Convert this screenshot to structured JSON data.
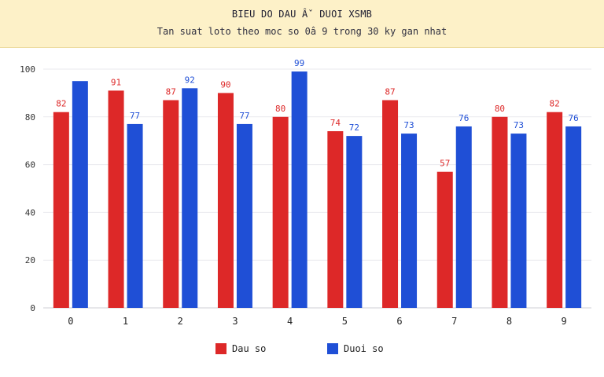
{
  "header": {
    "title": "BIEU DO DAU Âˇ DUOI XSMB",
    "subtitle": "Tan suat loto theo moc so 0â  9 trong 30 ky gan nhat",
    "background": "#fdf1c8"
  },
  "legend": [
    {
      "label": "Dau so",
      "color": "#dd2828"
    },
    {
      "label": "Duoi so",
      "color": "#1f4fd6"
    }
  ],
  "chart_data": {
    "type": "bar",
    "categories": [
      "0",
      "1",
      "2",
      "3",
      "4",
      "5",
      "6",
      "7",
      "8",
      "9"
    ],
    "series": [
      {
        "name": "Dau so",
        "color": "#dd2828",
        "values": [
          82,
          91,
          87,
          90,
          80,
          74,
          87,
          57,
          80,
          82
        ],
        "labels": [
          "82",
          "91",
          "87",
          "90",
          "80",
          "74",
          "87",
          "57",
          "80",
          "82"
        ]
      },
      {
        "name": "Duoi so",
        "color": "#1f4fd6",
        "values": [
          95,
          77,
          92,
          77,
          99,
          72,
          73,
          76,
          73,
          76
        ],
        "labels": [
          "",
          "77",
          "92",
          "77",
          "99",
          "72",
          "73",
          "76",
          "73",
          "76"
        ]
      }
    ],
    "ylim": [
      0,
      100
    ],
    "yticks": [
      0,
      20,
      40,
      60,
      80,
      100
    ],
    "grid": true,
    "legend_position": "bottom"
  }
}
